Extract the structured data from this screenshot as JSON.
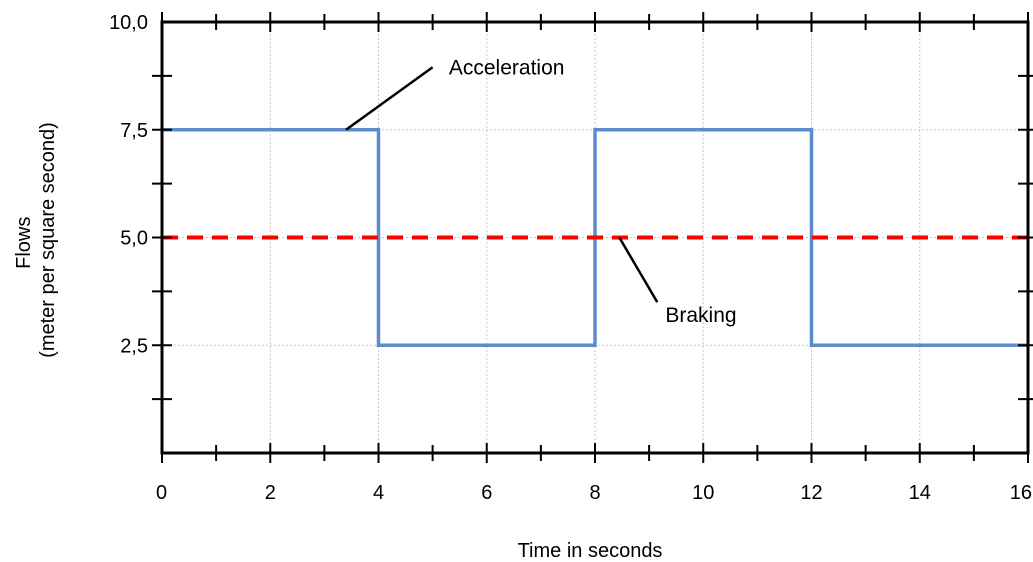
{
  "chart_data": {
    "type": "line",
    "xlabel": "Time in seconds",
    "ylabel_lines": [
      "Flows",
      "(meter per square second)"
    ],
    "xlim": [
      0,
      16
    ],
    "ylim": [
      0,
      10
    ],
    "x_ticks": [
      "0",
      "2",
      "4",
      "6",
      "8",
      "10",
      "12",
      "14",
      "16"
    ],
    "x_tick_values": [
      0,
      2,
      4,
      6,
      8,
      10,
      12,
      14,
      16
    ],
    "y_ticks": [
      "2,5",
      "5,0",
      "7,5",
      "10,0"
    ],
    "y_tick_values": [
      2.5,
      5.0,
      7.5,
      10.0
    ],
    "grid": true,
    "series": [
      {
        "name": "Acceleration",
        "style": "solid",
        "color": "#5b8ccc",
        "x": [
          0,
          4,
          4,
          8,
          8,
          12,
          12,
          16
        ],
        "y": [
          7.5,
          7.5,
          2.5,
          2.5,
          7.5,
          7.5,
          2.5,
          2.5
        ]
      },
      {
        "name": "Braking",
        "style": "dashed",
        "color": "#ff0000",
        "x": [
          0,
          16
        ],
        "y": [
          5.0,
          5.0
        ]
      }
    ],
    "annotations": [
      {
        "text": "Acceleration",
        "series": "Acceleration"
      },
      {
        "text": "Braking",
        "series": "Braking"
      }
    ]
  }
}
